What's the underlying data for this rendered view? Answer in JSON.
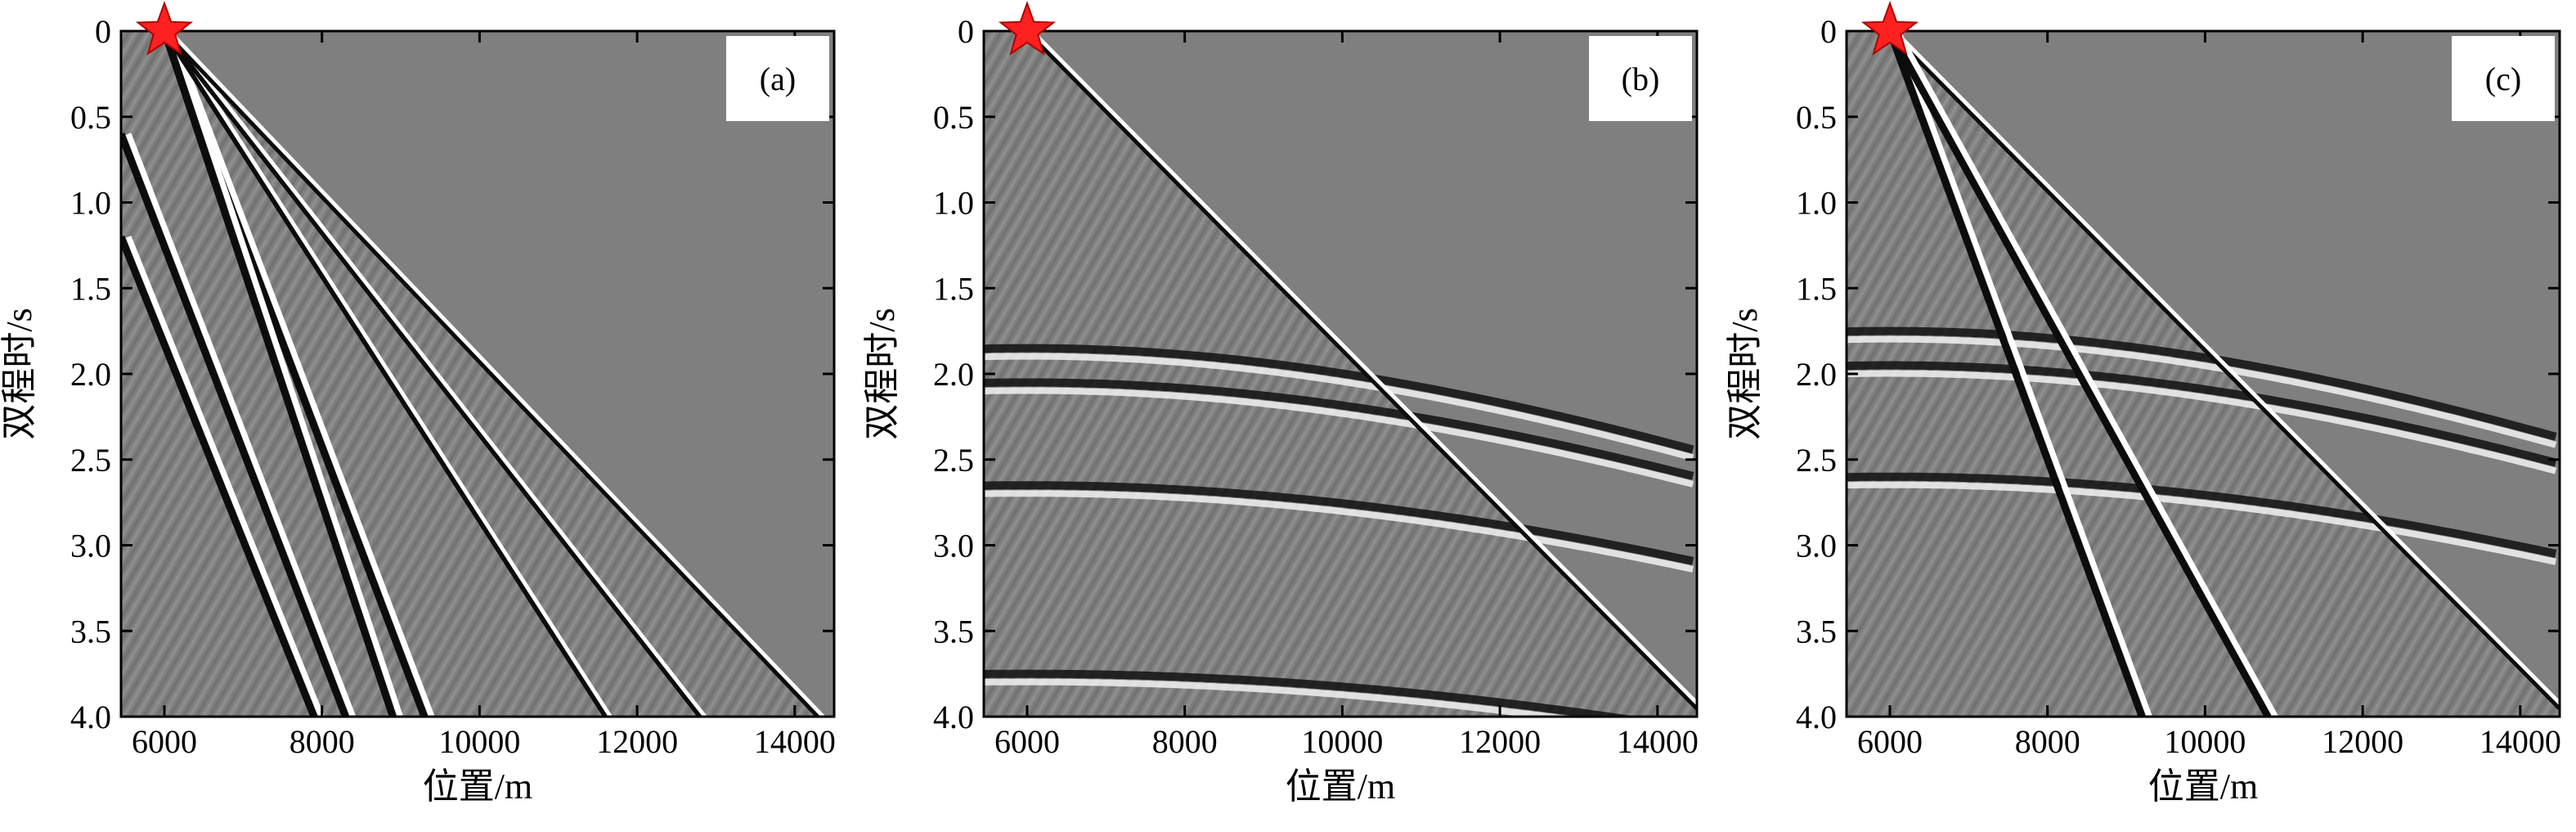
{
  "figure": {
    "panels": [
      {
        "id": "a",
        "tag": "(a)",
        "xlabel": "位置/m",
        "ylabel": "双程时/s"
      },
      {
        "id": "b",
        "tag": "(b)",
        "xlabel": "位置/m",
        "ylabel": "双程时/s"
      },
      {
        "id": "c",
        "tag": "(c)",
        "xlabel": "位置/m",
        "ylabel": "双程时/s"
      }
    ]
  },
  "chart_data": [
    {
      "type": "heatmap",
      "label": "(a)",
      "xlabel": "位置/m",
      "ylabel": "双程时/s",
      "xlim": [
        5450,
        14500
      ],
      "ylim": [
        4.0,
        0
      ],
      "xticks": [
        "6000",
        "8000",
        "10000",
        "12000",
        "14000"
      ],
      "yticks": [
        "0",
        "0.5",
        "1.0",
        "1.5",
        "2.0",
        "2.5",
        "3.0",
        "3.5",
        "4.0"
      ],
      "source": {
        "x": 6000,
        "t": 0,
        "marker": "red-star"
      },
      "background": "#7f7f7f",
      "events": [
        {
          "kind": "direct",
          "x": [
            6000,
            9300
          ],
          "t": [
            0,
            4.0
          ]
        },
        {
          "kind": "direct",
          "x": [
            6000,
            8900
          ],
          "t": [
            0,
            4.0
          ]
        },
        {
          "kind": "direct",
          "x": [
            5450,
            7900
          ],
          "t": [
            1.2,
            4.0
          ]
        },
        {
          "kind": "direct",
          "x": [
            5450,
            8300
          ],
          "t": [
            0.6,
            4.0
          ]
        },
        {
          "kind": "refracted",
          "x": [
            6000,
            11600
          ],
          "t": [
            0,
            4.0
          ]
        },
        {
          "kind": "refracted",
          "x": [
            6000,
            12800
          ],
          "t": [
            0,
            4.0
          ]
        },
        {
          "kind": "refracted",
          "x": [
            6000,
            14300
          ],
          "t": [
            0,
            4.0
          ]
        }
      ]
    },
    {
      "type": "heatmap",
      "label": "(b)",
      "xlabel": "位置/m",
      "ylabel": "双程时/s",
      "xlim": [
        5450,
        14500
      ],
      "ylim": [
        4.0,
        0
      ],
      "xticks": [
        "6000",
        "8000",
        "10000",
        "12000",
        "14000"
      ],
      "yticks": [
        "0",
        "0.5",
        "1.0",
        "1.5",
        "2.0",
        "2.5",
        "3.0",
        "3.5",
        "4.0"
      ],
      "source": {
        "x": 6000,
        "t": 0,
        "marker": "red-star"
      },
      "background": "#7f7f7f",
      "events": [
        {
          "kind": "first-break",
          "x": [
            6000,
            14500
          ],
          "t": [
            0,
            3.95
          ]
        },
        {
          "kind": "reflection",
          "t0": 1.85
        },
        {
          "kind": "reflection",
          "t0": 2.05
        },
        {
          "kind": "reflection",
          "t0": 2.65
        },
        {
          "kind": "reflection",
          "t0": 3.75
        }
      ]
    },
    {
      "type": "heatmap",
      "label": "(c)",
      "xlabel": "位置/m",
      "ylabel": "双程时/s",
      "xlim": [
        5450,
        14500
      ],
      "ylim": [
        4.0,
        0
      ],
      "xticks": [
        "6000",
        "8000",
        "10000",
        "12000",
        "14000"
      ],
      "yticks": [
        "0",
        "0.5",
        "1.0",
        "1.5",
        "2.0",
        "2.5",
        "3.0",
        "3.5",
        "4.0"
      ],
      "source": {
        "x": 6000,
        "t": 0,
        "marker": "red-star"
      },
      "background": "#7f7f7f",
      "events": [
        {
          "kind": "first-break",
          "x": [
            6000,
            14500
          ],
          "t": [
            0,
            3.95
          ]
        },
        {
          "kind": "direct",
          "x": [
            6000,
            9200
          ],
          "t": [
            0,
            4.0
          ]
        },
        {
          "kind": "direct",
          "x": [
            6000,
            10800
          ],
          "t": [
            0,
            4.0
          ]
        },
        {
          "kind": "reflection",
          "t0": 1.75
        },
        {
          "kind": "reflection",
          "t0": 1.95
        },
        {
          "kind": "reflection",
          "t0": 2.6
        }
      ]
    }
  ]
}
